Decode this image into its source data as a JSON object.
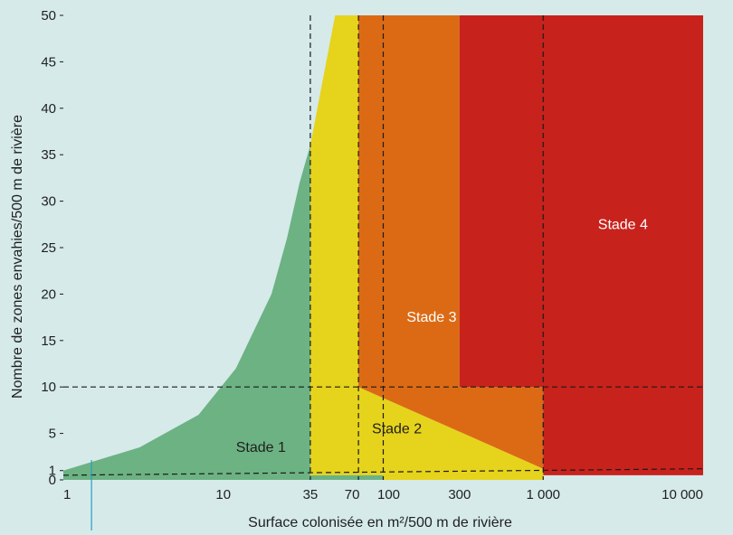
{
  "colors": {
    "background": "#d6eaea",
    "stage1": "#6cb283",
    "stage2": "#e6d31c",
    "stage3": "#dc6a14",
    "stage4": "#c8221c",
    "guide": "#1a1a1a",
    "marker": "#2a9fc0"
  },
  "chart_data": {
    "type": "area",
    "x_scale": "log",
    "xlim": [
      1,
      10000
    ],
    "ylim": [
      0,
      50
    ],
    "xlabel": "Surface colonisée en m²/500 m de rivière",
    "ylabel": "Nombre de zones envahies/500 m de rivière",
    "x_tick_labels": [
      "1",
      "10",
      "35",
      "70",
      "100",
      "300",
      "1 000",
      "10 000"
    ],
    "x_ticks": [
      1,
      10,
      35,
      70,
      100,
      300,
      1000,
      10000
    ],
    "y_tick_labels": [
      "0",
      "1",
      "5",
      "10",
      "15",
      "20",
      "25",
      "30",
      "35",
      "40",
      "45",
      "50"
    ],
    "y_ticks": [
      0,
      1,
      5,
      10,
      15,
      20,
      25,
      30,
      35,
      40,
      45,
      50
    ],
    "regions": [
      {
        "name": "Stade 1",
        "color": "#6cb283",
        "label_pos": [
          12,
          3
        ],
        "polygon": [
          [
            1,
            0
          ],
          [
            1,
            1
          ],
          [
            3,
            3.5
          ],
          [
            7,
            7
          ],
          [
            12,
            12
          ],
          [
            20,
            20
          ],
          [
            25,
            26
          ],
          [
            30,
            32
          ],
          [
            35,
            36
          ],
          [
            35,
            0.5
          ],
          [
            100,
            0.5
          ],
          [
            100,
            0
          ]
        ]
      },
      {
        "name": "Stade 2",
        "color": "#e6d31c",
        "label_pos": [
          85,
          5
        ],
        "polygon": [
          [
            35,
            0.5
          ],
          [
            35,
            36
          ],
          [
            50,
            50
          ],
          [
            70,
            50
          ],
          [
            70,
            10
          ],
          [
            1000,
            1.2
          ],
          [
            1000,
            0
          ],
          [
            100,
            0
          ],
          [
            100,
            0.5
          ]
        ]
      },
      {
        "name": "Stade 3",
        "color": "#dc6a14",
        "label_pos": [
          140,
          17
        ],
        "polygon": [
          [
            70,
            10
          ],
          [
            70,
            50
          ],
          [
            300,
            50
          ],
          [
            300,
            10
          ],
          [
            1000,
            10
          ],
          [
            1000,
            1.2
          ]
        ]
      },
      {
        "name": "Stade 4",
        "color": "#c8221c",
        "label_pos": [
          2200,
          27
        ],
        "polygon": [
          [
            300,
            10
          ],
          [
            300,
            50
          ],
          [
            10000,
            50
          ],
          [
            10000,
            0.5
          ],
          [
            1000,
            0.5
          ],
          [
            1000,
            10
          ]
        ]
      }
    ],
    "guide_lines": {
      "vertical_x": [
        35,
        70,
        100,
        1000
      ],
      "horizontal_y": [
        10
      ],
      "diagonal": [
        [
          1,
          0.5
        ],
        [
          10000,
          1.2
        ]
      ]
    },
    "marker_x": 1.5,
    "grid": false,
    "legend": "none"
  }
}
